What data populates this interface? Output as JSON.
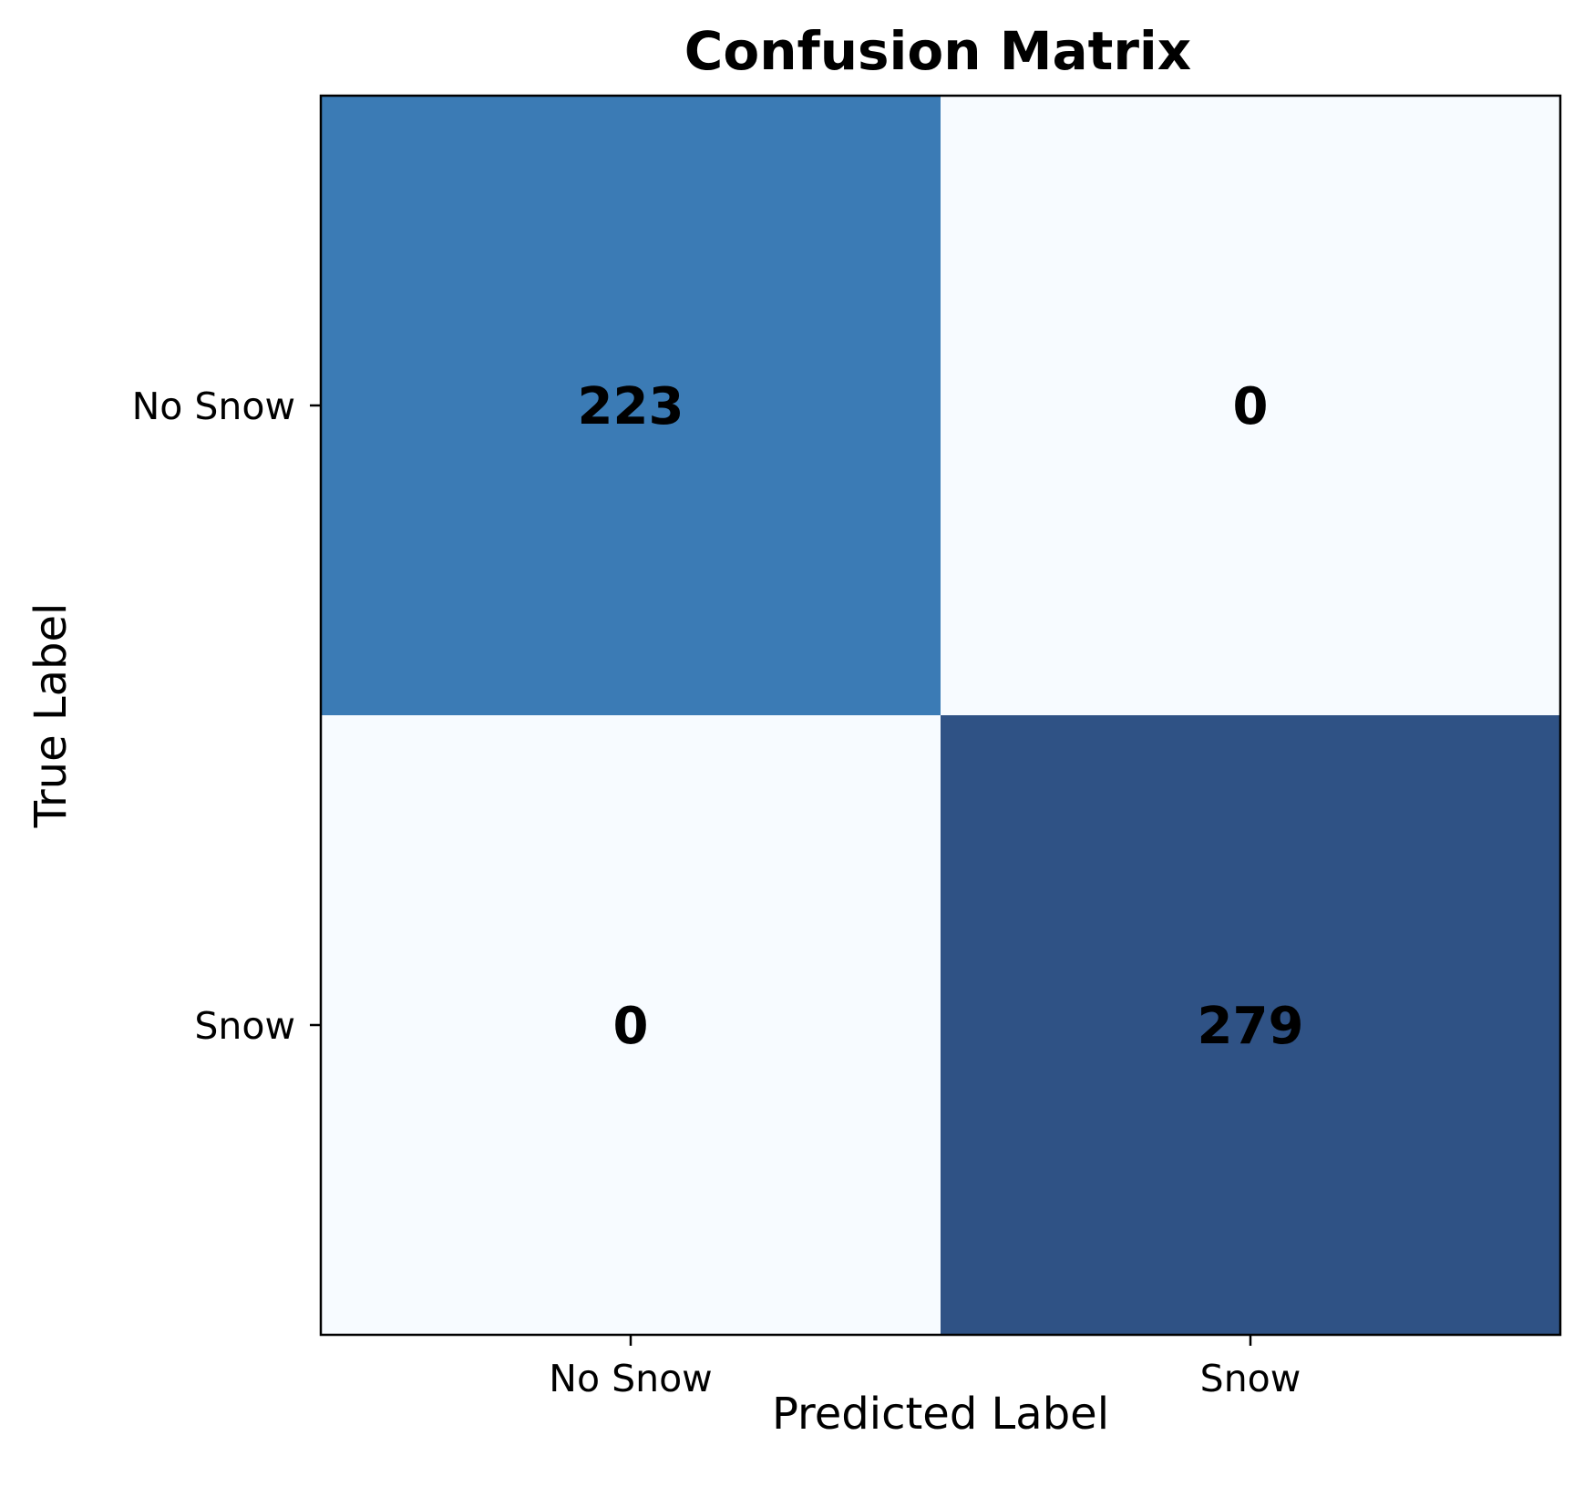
{
  "chart_data": {
    "type": "heatmap",
    "title": "Confusion Matrix",
    "xlabel": "Predicted Label",
    "ylabel": "True Label",
    "x_categories": [
      "No Snow",
      "Snow"
    ],
    "y_categories": [
      "No Snow",
      "Snow"
    ],
    "matrix": [
      [
        223,
        0
      ],
      [
        0,
        279
      ]
    ],
    "colormap": "Blues",
    "cell_colors": [
      [
        "#3b7bb5",
        "#f7fbff"
      ],
      [
        "#f7fbff",
        "#2f5285"
      ]
    ],
    "text_color": "#000000"
  }
}
